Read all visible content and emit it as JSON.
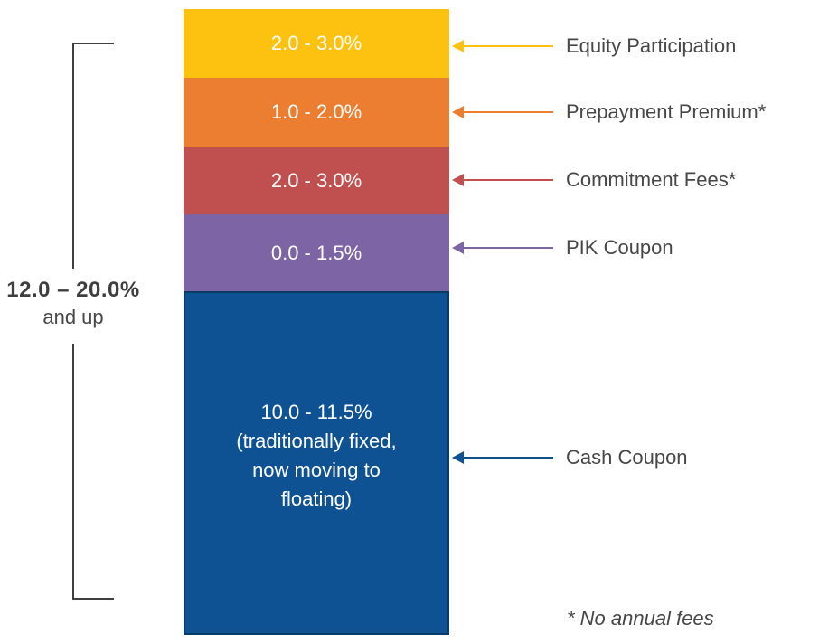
{
  "left_annotation": {
    "range": "12.0 – 20.0%",
    "suffix": "and up"
  },
  "segments": [
    {
      "id": "equity-participation",
      "value": "2.0 - 3.0%",
      "color": "#FDC110",
      "callout": "Equity Participation"
    },
    {
      "id": "prepayment-premium",
      "value": "1.0 - 2.0%",
      "color": "#EC7E32",
      "callout": "Prepayment Premium*"
    },
    {
      "id": "commitment-fees",
      "value": "2.0 - 3.0%",
      "color": "#C05050",
      "callout": "Commitment Fees*"
    },
    {
      "id": "pik-coupon",
      "value": "0.0 - 1.5%",
      "color": "#7D64A5",
      "callout": "PIK Coupon"
    },
    {
      "id": "cash-coupon",
      "value": "10.0 - 11.5%\n(traditionally fixed,\nnow moving to\nfloating)",
      "color": "#0E5294",
      "border_color": "#0A3A66",
      "callout": "Cash Coupon"
    }
  ],
  "footnote": "* No annual fees",
  "chart_data": {
    "type": "bar",
    "subtype": "single-stacked-column",
    "title": "",
    "categories": [
      "Cash Coupon",
      "PIK Coupon",
      "Commitment Fees*",
      "Prepayment Premium*",
      "Equity Participation"
    ],
    "series": [
      {
        "name": "range_low_pct",
        "values": [
          10.0,
          0.0,
          2.0,
          1.0,
          2.0
        ]
      },
      {
        "name": "range_high_pct",
        "values": [
          11.5,
          1.5,
          3.0,
          2.0,
          3.0
        ]
      }
    ],
    "segment_labels": [
      "10.0 - 11.5% (traditionally fixed, now moving to floating)",
      "0.0 - 1.5%",
      "2.0 - 3.0%",
      "1.0 - 2.0%",
      "2.0 - 3.0%"
    ],
    "segment_colors": [
      "#0E5294",
      "#7D64A5",
      "#C05050",
      "#EC7E32",
      "#FDC110"
    ],
    "total_label": "12.0 – 20.0% and up",
    "footnote": "* No annual fees",
    "legend_position": "right-callouts",
    "grid": false,
    "axes_visible": false
  }
}
